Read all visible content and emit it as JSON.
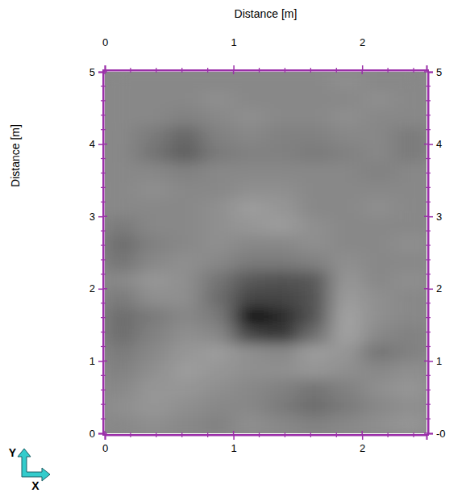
{
  "chart_data": {
    "type": "heatmap",
    "x_title": "Distance [m]",
    "y_title": "Distance [m]",
    "axis_symbols": {
      "x": "X",
      "y": "Y"
    },
    "xlim": [
      0,
      2.5
    ],
    "xticks": [
      0,
      1,
      2
    ],
    "x_minor_ticks": [
      0.2,
      0.4,
      0.6,
      0.8,
      1.2,
      1.4,
      1.6,
      1.8,
      2.2,
      2.4
    ],
    "ylim": [
      0,
      5
    ],
    "yticks": [
      0,
      1,
      2,
      3,
      4,
      5
    ],
    "y2lim": [
      0,
      5
    ],
    "y2ticks": [
      {
        "value": 0,
        "label": "-0"
      },
      1,
      2,
      3,
      4,
      5
    ],
    "y_minor_ticks": [
      0.2,
      0.4,
      0.6,
      0.8,
      1.2,
      1.4,
      1.6,
      1.8,
      2.2,
      2.4,
      2.6,
      2.8,
      3.2,
      3.4,
      3.6,
      3.8,
      4.2,
      4.4,
      4.6,
      4.8
    ],
    "x_edges": [
      0,
      0.25,
      0.5,
      0.75,
      1,
      1.25,
      1.5,
      1.75,
      2,
      2.25,
      2.5
    ],
    "y_edges": [
      0,
      0.25,
      0.5,
      0.75,
      1,
      1.25,
      1.5,
      1.75,
      2,
      2.25,
      2.5,
      2.75,
      3,
      3.25,
      3.5,
      3.75,
      4,
      4.25,
      4.5,
      4.75,
      5
    ],
    "z": [
      [
        0,
        0.5,
        0,
        -0.5,
        0.5,
        0,
        -0.5,
        0,
        0.5,
        1
      ],
      [
        0.5,
        1,
        0.5,
        0,
        0,
        -1,
        -2,
        -1,
        0,
        0.5
      ],
      [
        0,
        1,
        1,
        0.5,
        0,
        -0.5,
        -1.5,
        -0.5,
        0.5,
        1
      ],
      [
        -0.5,
        0.5,
        1.5,
        1,
        0.5,
        0.5,
        1,
        0.5,
        0,
        0.5
      ],
      [
        -1,
        0,
        1,
        1.5,
        0.5,
        0,
        1.5,
        1,
        -1.5,
        -0.5
      ],
      [
        -2,
        -0.5,
        0.5,
        0,
        -5,
        -6,
        -2,
        2,
        0,
        -0.5
      ],
      [
        -2,
        -1,
        0,
        -1,
        -10,
        -7,
        -4,
        2,
        0.5,
        0
      ],
      [
        -1,
        0.5,
        0.5,
        -2,
        -5,
        -5,
        -4,
        1.5,
        0.5,
        0
      ],
      [
        0,
        1,
        0.5,
        -1.5,
        -3.5,
        -4,
        -3.5,
        1,
        0,
        0.5
      ],
      [
        -1.5,
        0,
        0.5,
        0,
        -1,
        -1,
        -0.5,
        0.5,
        0,
        0
      ],
      [
        -2,
        -0.5,
        0,
        0.5,
        0,
        0,
        0.5,
        0,
        0,
        0.5
      ],
      [
        -1,
        0,
        0,
        0.5,
        1,
        1.5,
        0.5,
        0,
        0,
        0
      ],
      [
        0,
        0,
        0,
        0.5,
        1.5,
        1,
        0,
        0,
        0.5,
        0
      ],
      [
        0,
        0.5,
        0,
        0,
        0.5,
        0.5,
        0,
        0,
        0,
        0
      ],
      [
        0,
        0,
        -0.5,
        0,
        0,
        0,
        0,
        0,
        -0.5,
        0
      ],
      [
        0,
        -1.5,
        -3,
        -1,
        -0.5,
        -0.5,
        -1,
        -0.5,
        0,
        -1
      ],
      [
        0,
        -1,
        -2.5,
        -0.5,
        0,
        -0.5,
        -0.5,
        0,
        0,
        -1
      ],
      [
        0,
        0,
        -0.5,
        0,
        0.5,
        0,
        0,
        0.5,
        0,
        0
      ],
      [
        0,
        0,
        0,
        0.5,
        0,
        0,
        0,
        0,
        0.5,
        0
      ],
      [
        0,
        0,
        0,
        0,
        0,
        0,
        0,
        0.5,
        0,
        0
      ]
    ],
    "zlim": [
      -10,
      5
    ]
  }
}
